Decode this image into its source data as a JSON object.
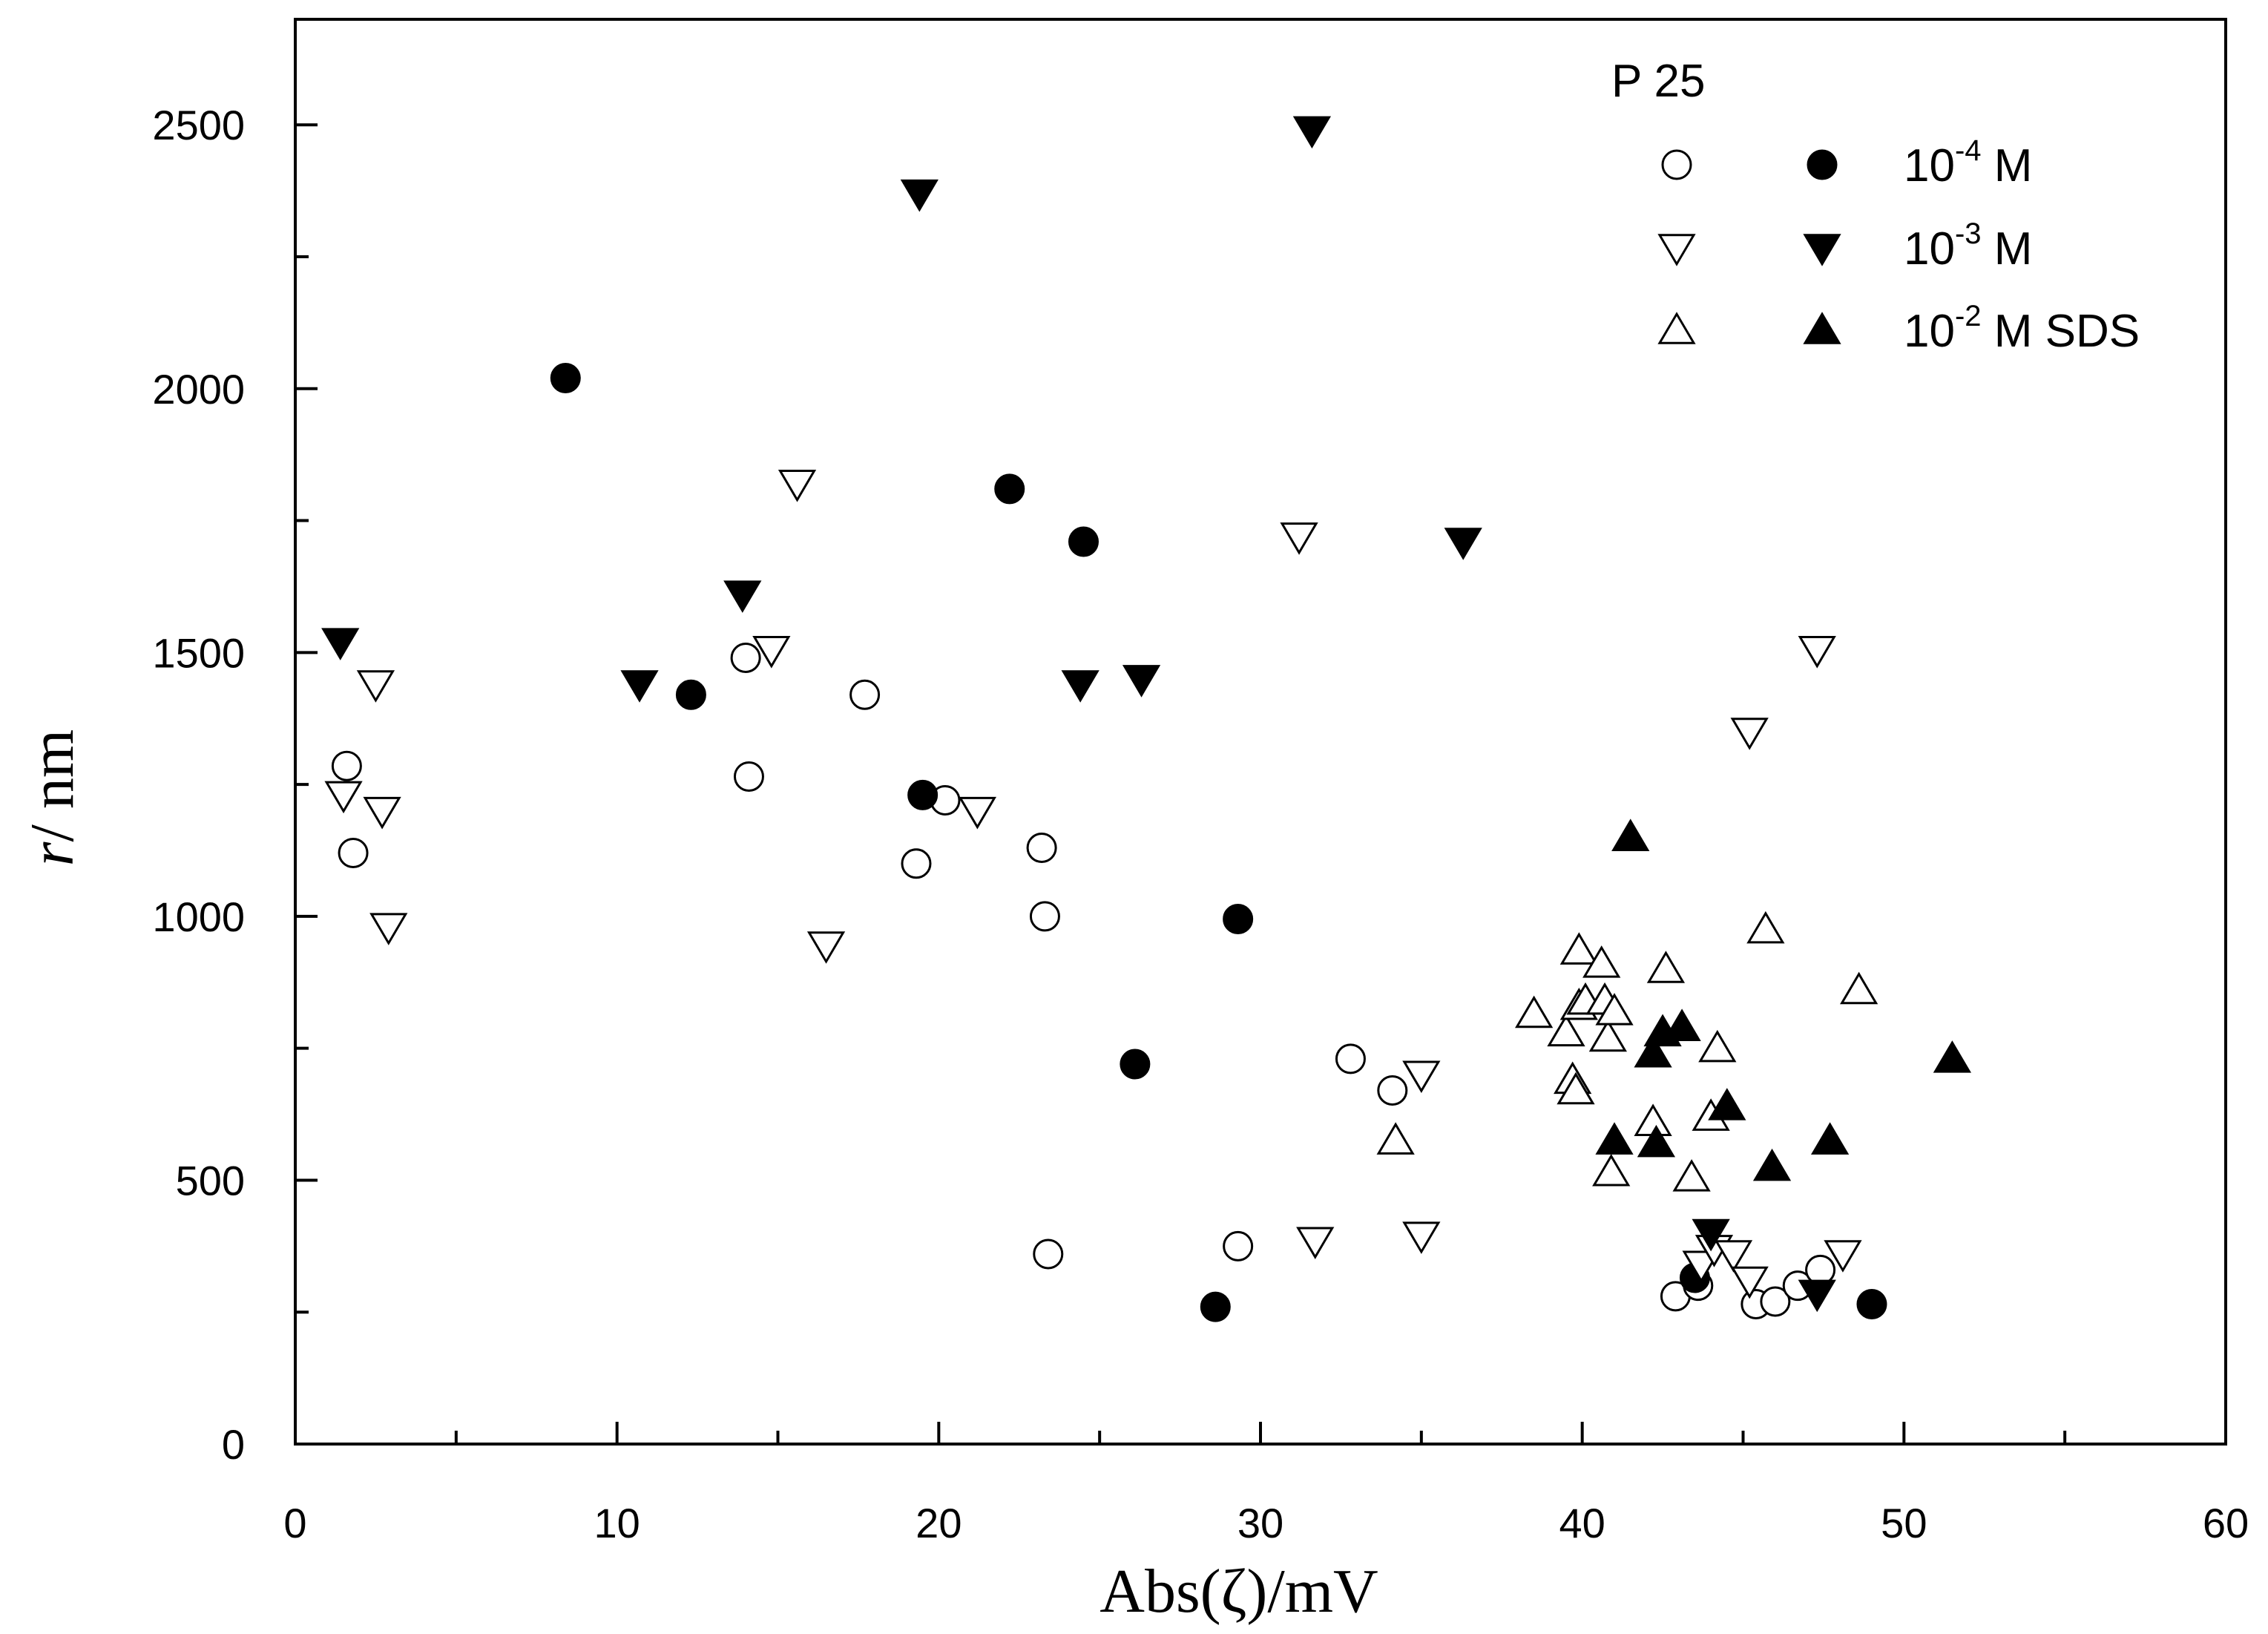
{
  "chart_data": {
    "type": "scatter",
    "title": "",
    "xlabel": "Abs(ζ)/mV",
    "ylabel_italic": "r",
    "ylabel_rest": "/ nm",
    "xlim": [
      0,
      60
    ],
    "ylim": [
      0,
      2700
    ],
    "x_ticks": [
      0,
      10,
      20,
      30,
      40,
      50,
      60
    ],
    "y_ticks": [
      0,
      500,
      1000,
      1500,
      2000,
      2500
    ],
    "grid": false,
    "legend": {
      "title": "P 25",
      "position": "top-right",
      "entries": [
        {
          "base": "10",
          "exp": "-4",
          "suffix": " M"
        },
        {
          "base": "10",
          "exp": "-3",
          "suffix": " M"
        },
        {
          "base": "10",
          "exp": "-2",
          "suffix": " M SDS"
        }
      ]
    },
    "series": [
      {
        "name": "10-4 M open",
        "marker": "circle",
        "filled": false,
        "points": [
          [
            1.6,
            1285
          ],
          [
            1.8,
            1120
          ],
          [
            14.0,
            1490
          ],
          [
            14.1,
            1265
          ],
          [
            17.7,
            1420
          ],
          [
            19.3,
            1100
          ],
          [
            20.2,
            1220
          ],
          [
            23.2,
            1130
          ],
          [
            23.3,
            1000
          ],
          [
            23.4,
            360
          ],
          [
            29.3,
            375
          ],
          [
            32.8,
            730
          ],
          [
            34.1,
            670
          ],
          [
            42.9,
            280
          ],
          [
            43.6,
            300
          ],
          [
            45.4,
            265
          ],
          [
            46.0,
            270
          ],
          [
            46.7,
            300
          ],
          [
            47.4,
            330
          ]
        ]
      },
      {
        "name": "10-4 M filled",
        "marker": "circle",
        "filled": true,
        "points": [
          [
            8.4,
            2020
          ],
          [
            12.3,
            1420
          ],
          [
            19.5,
            1230
          ],
          [
            22.2,
            1810
          ],
          [
            24.5,
            1710
          ],
          [
            26.1,
            720
          ],
          [
            28.6,
            260
          ],
          [
            29.3,
            995
          ],
          [
            43.5,
            315
          ],
          [
            49.0,
            265
          ]
        ]
      },
      {
        "name": "10-3 M open",
        "marker": "triangle-down",
        "filled": false,
        "points": [
          [
            1.5,
            1230
          ],
          [
            2.5,
            1440
          ],
          [
            2.7,
            1200
          ],
          [
            2.9,
            980
          ],
          [
            14.8,
            1505
          ],
          [
            15.6,
            1820
          ],
          [
            16.5,
            945
          ],
          [
            21.2,
            1200
          ],
          [
            31.2,
            1720
          ],
          [
            31.7,
            385
          ],
          [
            35.0,
            700
          ],
          [
            35.0,
            395
          ],
          [
            43.7,
            340
          ],
          [
            44.1,
            370
          ],
          [
            44.7,
            360
          ],
          [
            45.2,
            310
          ],
          [
            45.2,
            1350
          ],
          [
            47.3,
            1505
          ],
          [
            48.1,
            360
          ]
        ]
      },
      {
        "name": "10-3 M filled",
        "marker": "triangle-down",
        "filled": true,
        "points": [
          [
            1.4,
            1520
          ],
          [
            10.7,
            1440
          ],
          [
            13.9,
            1610
          ],
          [
            19.4,
            2370
          ],
          [
            24.4,
            1440
          ],
          [
            26.3,
            1450
          ],
          [
            31.6,
            2490
          ],
          [
            36.3,
            1710
          ],
          [
            44.0,
            400
          ],
          [
            47.3,
            285
          ]
        ]
      },
      {
        "name": "10-2 M SDS open",
        "marker": "triangle-up",
        "filled": false,
        "points": [
          [
            34.2,
            575
          ],
          [
            38.5,
            815
          ],
          [
            39.5,
            780
          ],
          [
            39.7,
            690
          ],
          [
            39.8,
            670
          ],
          [
            39.9,
            935
          ],
          [
            39.9,
            830
          ],
          [
            40.1,
            840
          ],
          [
            40.6,
            910
          ],
          [
            40.7,
            840
          ],
          [
            40.8,
            770
          ],
          [
            40.9,
            515
          ],
          [
            41.0,
            820
          ],
          [
            42.2,
            610
          ],
          [
            42.6,
            900
          ],
          [
            43.4,
            505
          ],
          [
            44.0,
            620
          ],
          [
            44.2,
            750
          ],
          [
            45.7,
            975
          ],
          [
            48.6,
            860
          ]
        ]
      },
      {
        "name": "10-2 M SDS filled",
        "marker": "triangle-up",
        "filled": true,
        "points": [
          [
            41.0,
            575
          ],
          [
            41.5,
            1150
          ],
          [
            42.2,
            740
          ],
          [
            42.3,
            570
          ],
          [
            42.5,
            780
          ],
          [
            43.1,
            790
          ],
          [
            44.5,
            640
          ],
          [
            45.9,
            525
          ],
          [
            47.7,
            575
          ],
          [
            51.5,
            730
          ]
        ]
      }
    ]
  }
}
